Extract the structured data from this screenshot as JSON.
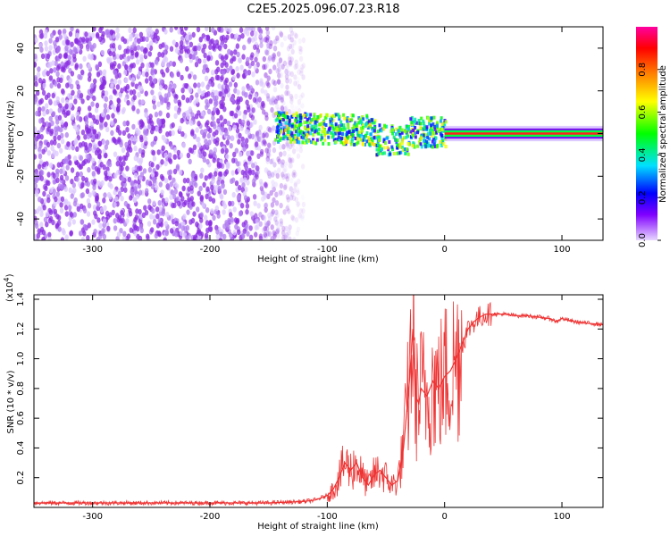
{
  "title": "C2E5.2025.096.07.23.R18",
  "chart_data": [
    {
      "type": "heatmap",
      "xlabel": "Height of straight line (km)",
      "ylabel": "Frequency (Hz)",
      "xlim": [
        -350,
        135
      ],
      "ylim": [
        -50,
        50
      ],
      "x_ticks": [
        -300,
        -200,
        -100,
        0,
        100
      ],
      "y_ticks": [
        -40,
        -20,
        0,
        20,
        40
      ],
      "colorbar": {
        "label": "Normalized spectral amplitude",
        "range": [
          0,
          1
        ],
        "ticks": [
          0.0,
          0.2,
          0.4,
          0.6,
          0.8
        ],
        "colors": [
          "#e8d8ff",
          "#8000ff",
          "#0000ff",
          "#00e0ff",
          "#00ff00",
          "#ffff00",
          "#ff8000",
          "#ff0000",
          "#ff00a0"
        ]
      },
      "regions": [
        {
          "x_range": [
            -350,
            -120
          ],
          "freq_range": [
            -50,
            50
          ],
          "amplitude": 0.05
        },
        {
          "x_range": [
            -145,
            0
          ],
          "freq_center": 2,
          "freq_halfwidth": 7,
          "amplitude": 0.35
        },
        {
          "x_range": [
            0,
            135
          ],
          "freq_center": 0,
          "freq_halfwidth": 1.5,
          "amplitude": 0.9
        }
      ]
    },
    {
      "type": "line",
      "xlabel": "Height of straight line (km)",
      "ylabel": "SNR (10 * v/v)",
      "y_multiplier": "(x10",
      "y_multiplier_exp": "4",
      "y_multiplier_close": ")",
      "xlim": [
        -350,
        135
      ],
      "ylim": [
        0,
        1.43
      ],
      "x_ticks": [
        -300,
        -200,
        -100,
        0,
        100
      ],
      "y_ticks": [
        0.2,
        0.4,
        0.6,
        0.8,
        1.0,
        1.2,
        1.4
      ],
      "color": "#ee3333",
      "x": [
        -350,
        -300,
        -250,
        -200,
        -150,
        -120,
        -110,
        -100,
        -95,
        -90,
        -85,
        -80,
        -75,
        -70,
        -65,
        -60,
        -55,
        -50,
        -45,
        -40,
        -35,
        -30,
        -27,
        -25,
        -22,
        -20,
        -15,
        -10,
        -5,
        0,
        5,
        10,
        15,
        20,
        25,
        30,
        35,
        40,
        50,
        60,
        70,
        80,
        90,
        95,
        100,
        110,
        120,
        135
      ],
      "y": [
        0.03,
        0.03,
        0.03,
        0.03,
        0.03,
        0.04,
        0.05,
        0.08,
        0.12,
        0.2,
        0.3,
        0.25,
        0.3,
        0.2,
        0.15,
        0.22,
        0.25,
        0.2,
        0.15,
        0.18,
        0.4,
        0.85,
        1.2,
        0.75,
        0.7,
        0.8,
        0.75,
        0.85,
        0.8,
        0.88,
        0.92,
        1.0,
        1.1,
        1.2,
        1.25,
        1.28,
        1.3,
        1.3,
        1.3,
        1.29,
        1.29,
        1.28,
        1.27,
        1.25,
        1.27,
        1.25,
        1.24,
        1.23
      ]
    }
  ]
}
